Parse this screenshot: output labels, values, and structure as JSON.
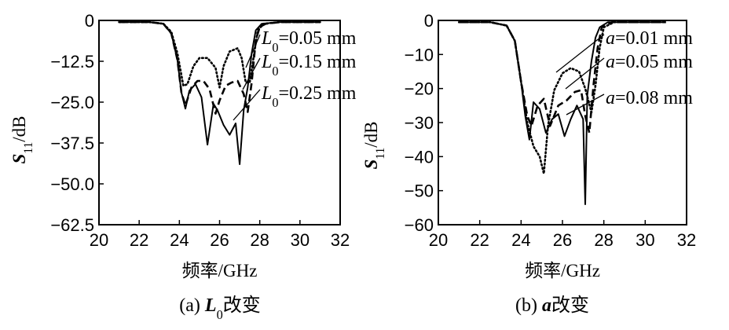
{
  "chart_data": [
    {
      "type": "line",
      "caption_prefix": "(a) ",
      "caption_var": "L",
      "caption_sub": "0",
      "caption_suffix": "改变",
      "xlabel": "频率/GHz",
      "ylabel_main": "S",
      "ylabel_sub": "11",
      "ylabel_unit": "/dB",
      "xlim": [
        20,
        32
      ],
      "ylim": [
        -62.5,
        0
      ],
      "xticks": [
        "20",
        "22",
        "24",
        "26",
        "28",
        "30",
        "32"
      ],
      "yticks": [
        "0",
        "−12.5",
        "−25.0",
        "−37.5",
        "−50.0",
        "−62.5"
      ],
      "ytick_values": [
        0,
        -12.5,
        -25,
        -37.5,
        -50,
        -62.5
      ],
      "series": [
        {
          "name_var": "L",
          "name_sub": "0",
          "name_rest": "=0.05 mm",
          "style": "dotted",
          "x": [
            21.0,
            22.5,
            23.2,
            23.6,
            23.9,
            24.2,
            24.4,
            24.7,
            25.0,
            25.4,
            25.8,
            26.0,
            26.2,
            26.5,
            26.9,
            27.1,
            27.3,
            27.5,
            27.7,
            27.9,
            28.2,
            29.0,
            31.0
          ],
          "y": [
            -0.5,
            -0.5,
            -1.0,
            -3.5,
            -10.0,
            -20.0,
            -19.5,
            -14.0,
            -11.5,
            -11.5,
            -14.5,
            -20.5,
            -14.0,
            -9.5,
            -8.5,
            -11.5,
            -19.0,
            -19.0,
            -11.0,
            -3.0,
            -1.0,
            -0.5,
            -0.5
          ]
        },
        {
          "name_var": "L",
          "name_sub": "0",
          "name_rest": "=0.15 mm",
          "style": "dashed",
          "x": [
            21.0,
            22.5,
            23.2,
            23.6,
            23.9,
            24.1,
            24.3,
            24.6,
            24.9,
            25.2,
            25.5,
            25.8,
            26.0,
            26.3,
            26.6,
            26.9,
            27.2,
            27.4,
            27.6,
            27.8,
            28.0,
            28.3,
            29.0,
            31.0
          ],
          "y": [
            -0.5,
            -0.5,
            -1.0,
            -4.0,
            -12.0,
            -22.0,
            -26.0,
            -20.5,
            -18.5,
            -18.5,
            -21.0,
            -28.5,
            -24.5,
            -20.0,
            -19.0,
            -18.5,
            -22.5,
            -28.0,
            -19.0,
            -6.0,
            -2.0,
            -1.0,
            -0.5,
            -0.5
          ]
        },
        {
          "name_var": "L",
          "name_sub": "0",
          "name_rest": "=0.25 mm",
          "style": "solid",
          "x": [
            21.0,
            22.5,
            23.2,
            23.6,
            23.9,
            24.1,
            24.3,
            24.5,
            24.8,
            25.1,
            25.4,
            25.7,
            25.9,
            26.2,
            26.5,
            26.8,
            27.0,
            27.2,
            27.4,
            27.6,
            27.8,
            28.1,
            29.0,
            31.0
          ],
          "y": [
            -0.5,
            -0.5,
            -1.0,
            -4.0,
            -12.0,
            -22.0,
            -27.0,
            -21.5,
            -19.5,
            -23.5,
            -38.0,
            -25.5,
            -27.5,
            -32.0,
            -35.0,
            -31.5,
            -44.0,
            -27.5,
            -20.5,
            -10.0,
            -3.0,
            -1.0,
            -0.5,
            -0.5
          ]
        }
      ]
    },
    {
      "type": "line",
      "caption_prefix": "(b) ",
      "caption_var": "a",
      "caption_sub": "",
      "caption_suffix": "改变",
      "xlabel": "频率/GHz",
      "ylabel_main": "S",
      "ylabel_sub": "11",
      "ylabel_unit": "/dB",
      "xlim": [
        20,
        32
      ],
      "ylim": [
        -60,
        0
      ],
      "xticks": [
        "20",
        "22",
        "24",
        "26",
        "28",
        "30",
        "32"
      ],
      "yticks": [
        "0",
        "−10",
        "−20",
        "−30",
        "−40",
        "−50",
        "−60"
      ],
      "ytick_values": [
        0,
        -10,
        -20,
        -30,
        -40,
        -50,
        -60
      ],
      "series": [
        {
          "name_var": "a",
          "name_sub": "",
          "name_rest": "=0.01 mm",
          "style": "dotted",
          "x": [
            21.0,
            22.5,
            23.3,
            23.7,
            24.0,
            24.3,
            24.6,
            24.9,
            25.1,
            25.3,
            25.6,
            26.0,
            26.4,
            26.8,
            27.1,
            27.4,
            27.6,
            27.8,
            28.0,
            28.5,
            31.0
          ],
          "y": [
            -0.5,
            -0.5,
            -1.5,
            -6.0,
            -18.0,
            -30.0,
            -37.0,
            -40.0,
            -45.0,
            -31.0,
            -20.5,
            -15.5,
            -14.0,
            -15.0,
            -20.0,
            -27.0,
            -19.0,
            -8.0,
            -2.0,
            -0.5,
            -0.5
          ]
        },
        {
          "name_var": "a",
          "name_sub": "",
          "name_rest": "=0.05 mm",
          "style": "dashed",
          "x": [
            21.0,
            22.5,
            23.3,
            23.7,
            24.0,
            24.3,
            24.5,
            24.8,
            25.1,
            25.4,
            25.8,
            26.2,
            26.6,
            26.9,
            27.1,
            27.3,
            27.5,
            27.7,
            27.9,
            28.4,
            31.0
          ],
          "y": [
            -0.5,
            -0.5,
            -1.5,
            -6.0,
            -18.0,
            -28.0,
            -31.0,
            -25.0,
            -23.0,
            -31.0,
            -25.0,
            -23.5,
            -21.0,
            -20.5,
            -28.0,
            -33.0,
            -19.0,
            -8.0,
            -2.0,
            -0.5,
            -0.5
          ]
        },
        {
          "name_var": "a",
          "name_sub": "",
          "name_rest": "=0.08 mm",
          "style": "solid",
          "x": [
            21.0,
            22.5,
            23.3,
            23.7,
            24.0,
            24.2,
            24.4,
            24.6,
            24.9,
            25.2,
            25.5,
            25.8,
            26.1,
            26.4,
            26.7,
            27.0,
            27.1,
            27.2,
            27.4,
            27.6,
            27.8,
            28.2,
            31.0
          ],
          "y": [
            -0.5,
            -0.5,
            -1.5,
            -6.0,
            -18.0,
            -28.0,
            -35.0,
            -24.0,
            -26.0,
            -33.0,
            -29.0,
            -27.5,
            -34.0,
            -29.0,
            -25.0,
            -29.0,
            -54.0,
            -22.0,
            -12.0,
            -5.0,
            -2.0,
            -0.5,
            -0.5
          ]
        }
      ]
    }
  ]
}
